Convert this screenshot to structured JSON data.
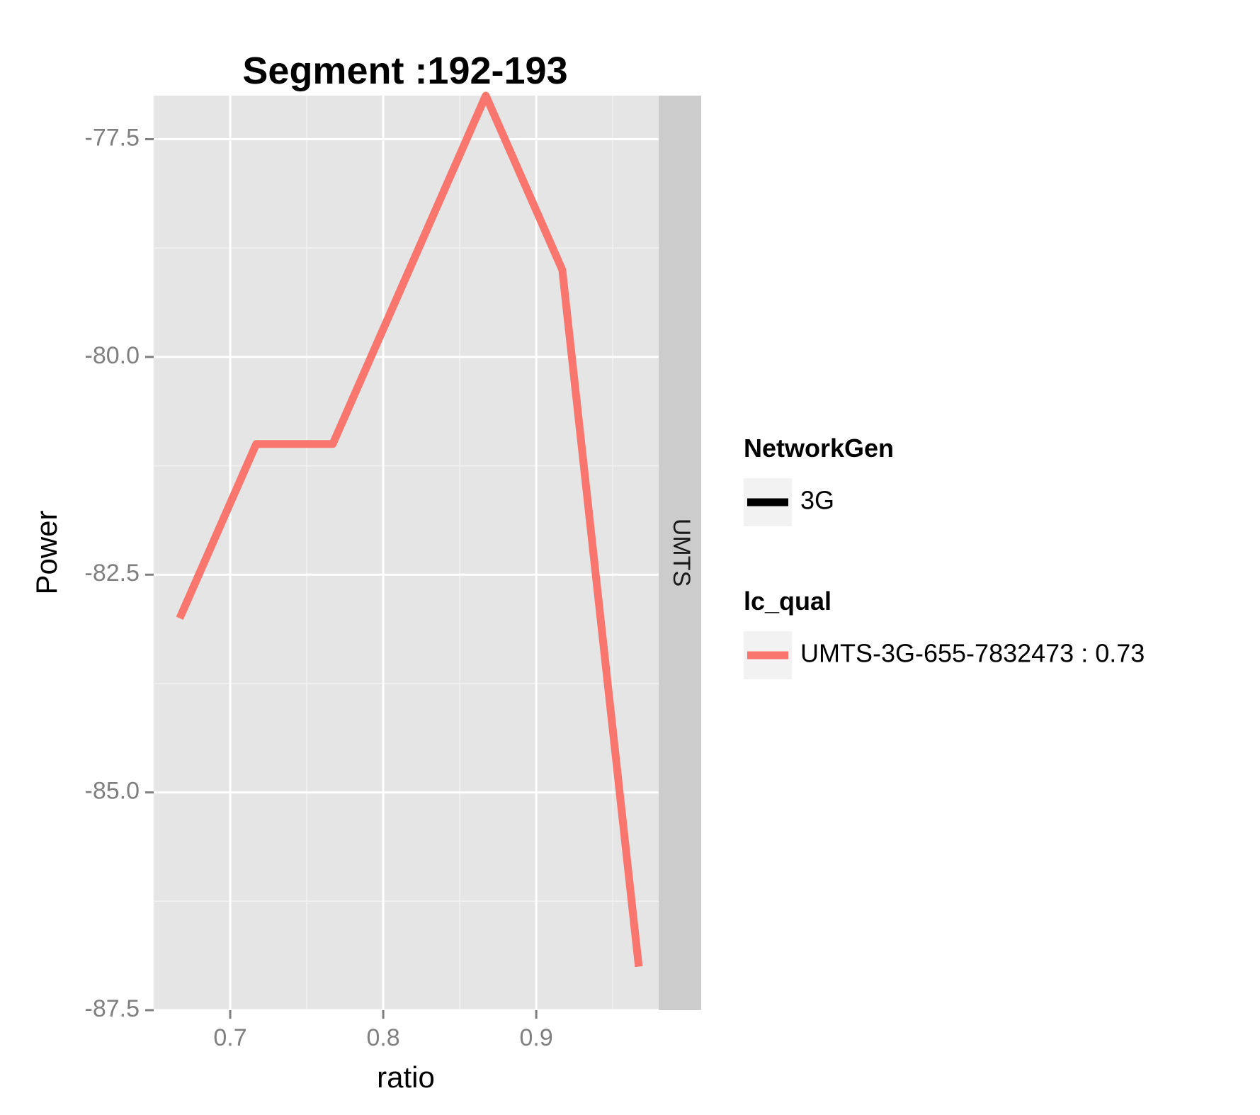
{
  "chart_data": {
    "type": "line",
    "title": "Segment :192-193",
    "xlabel": "ratio",
    "ylabel": "Power",
    "xlim": [
      0.65,
      0.98
    ],
    "ylim": [
      -87.5,
      -77.0
    ],
    "x_ticks": [
      0.7,
      0.8,
      0.9
    ],
    "x_tick_labels": [
      "0.7",
      "0.8",
      "0.9"
    ],
    "y_ticks": [
      -77.5,
      -80.0,
      -82.5,
      -85.0,
      -87.5
    ],
    "y_tick_labels": [
      "-77.5",
      "-80.0",
      "-82.5",
      "-85.0",
      "-87.5"
    ],
    "grid": true,
    "facet_label": "UMTS",
    "series": [
      {
        "name": "UMTS-3G-655-7832473 : 0.73",
        "color": "#f8766d",
        "x": [
          0.667,
          0.717,
          0.767,
          0.867,
          0.917,
          0.967
        ],
        "y": [
          -83.0,
          -81.0,
          -81.0,
          -77.0,
          -79.0,
          -87.0
        ]
      }
    ],
    "legends": [
      {
        "title": "NetworkGen",
        "entries": [
          {
            "label": "3G",
            "color": "#000000"
          }
        ]
      },
      {
        "title": "lc_qual",
        "entries": [
          {
            "label": "UMTS-3G-655-7832473 : 0.73",
            "color": "#f8766d"
          }
        ]
      }
    ],
    "legend_position": "right"
  }
}
